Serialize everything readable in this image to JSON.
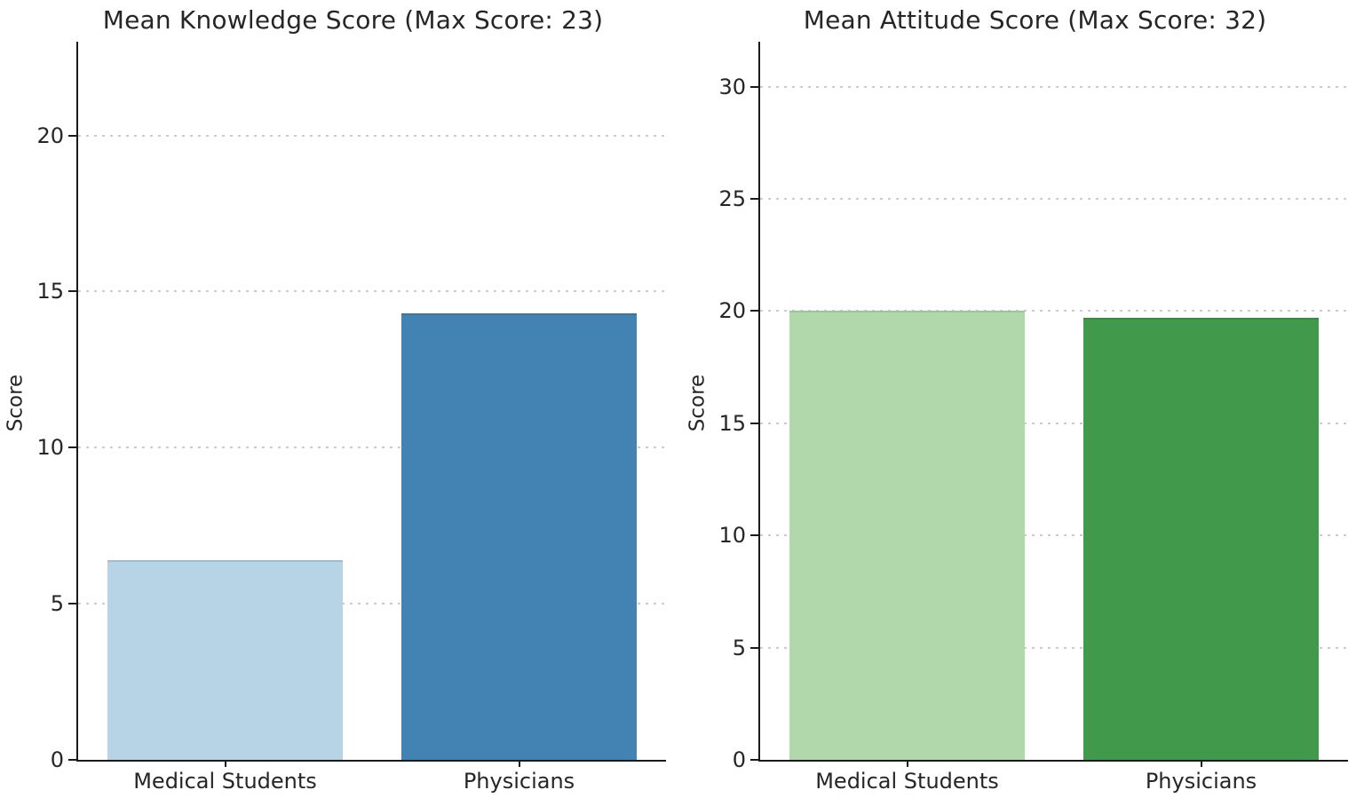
{
  "figure": {
    "background": "#ffffff",
    "text_color": "#262626",
    "axis_color": "#1a1a1a",
    "grid_color": "#cbcbcb",
    "grid_style": "dotted-horizontal"
  },
  "chart_data": [
    {
      "type": "bar",
      "title": "Mean Knowledge Score (Max Score: 23)",
      "xlabel": "",
      "ylabel": "Score",
      "categories": [
        "Medical Students",
        "Physicians"
      ],
      "values": [
        6.4,
        14.3
      ],
      "bar_colors": [
        "#b7d3e6",
        "#4383b4"
      ],
      "ylim": [
        0,
        23
      ],
      "yticks": [
        0,
        5,
        10,
        15,
        20
      ],
      "legend": "none",
      "grid": true
    },
    {
      "type": "bar",
      "title": "Mean Attitude Score (Max Score: 32)",
      "xlabel": "",
      "ylabel": "Score",
      "categories": [
        "Medical Students",
        "Physicians"
      ],
      "values": [
        20.0,
        19.7
      ],
      "bar_colors": [
        "#b0d8ab",
        "#419a4c"
      ],
      "ylim": [
        0,
        32
      ],
      "yticks": [
        0,
        5,
        10,
        15,
        20,
        25,
        30
      ],
      "legend": "none",
      "grid": true
    }
  ]
}
